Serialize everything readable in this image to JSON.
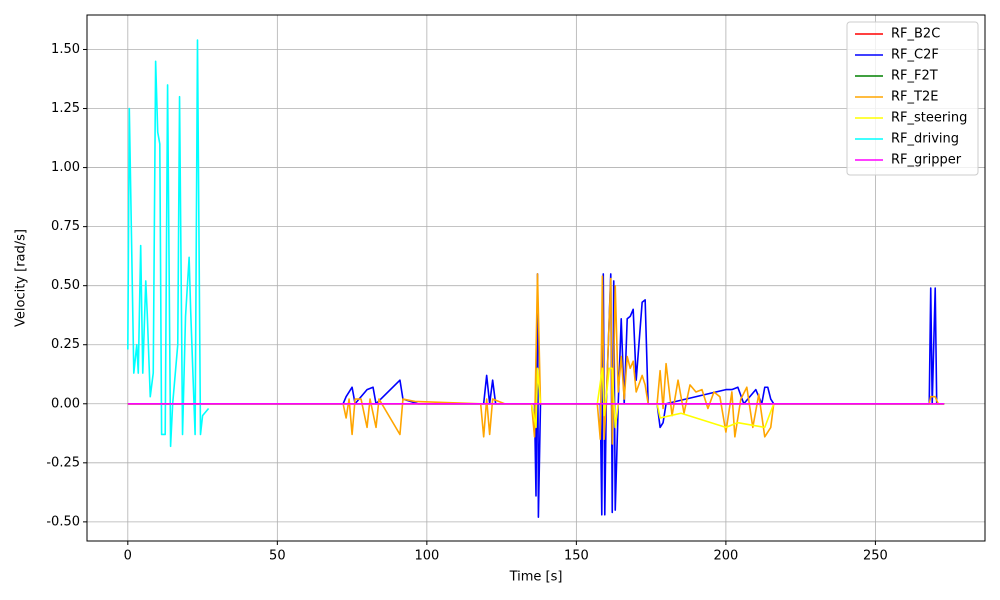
{
  "chart_data": {
    "type": "line",
    "xlabel": "Time [s]",
    "ylabel": "Velocity [rad/s]",
    "xlim": [
      -13.65,
      286.65
    ],
    "ylim": [
      -0.581,
      1.646
    ],
    "xticks": [
      0,
      50,
      100,
      150,
      200,
      250
    ],
    "yticks": [
      {
        "value": -0.5,
        "label": "-0.50"
      },
      {
        "value": -0.25,
        "label": "-0.25"
      },
      {
        "value": 0,
        "label": "0.00"
      },
      {
        "value": 0.25,
        "label": "0.25"
      },
      {
        "value": 0.5,
        "label": "0.50"
      },
      {
        "value": 0.75,
        "label": "0.75"
      },
      {
        "value": 1,
        "label": "1.00"
      },
      {
        "value": 1.25,
        "label": "1.25"
      },
      {
        "value": 1.5,
        "label": "1.50"
      }
    ],
    "grid": true,
    "legend": "upper right",
    "series": [
      {
        "name": "RF_B2C",
        "color": "#ff0000",
        "x": [
          0,
          273
        ],
        "values": [
          0,
          0
        ]
      },
      {
        "name": "RF_C2F",
        "color": "#0000ff",
        "x": [
          0,
          72,
          73,
          75,
          76,
          80,
          82,
          83,
          91,
          92,
          97,
          119,
          120,
          121,
          122,
          123,
          136,
          136.5,
          137,
          137.3,
          138,
          158,
          158.5,
          159,
          159.5,
          160,
          161.5,
          162,
          162.5,
          163,
          164,
          165,
          166,
          167,
          168,
          169,
          170,
          172,
          173,
          174,
          177,
          178,
          179,
          180,
          200,
          202,
          204,
          206,
          210,
          212,
          213,
          214,
          215,
          216,
          268,
          268.5,
          269,
          270,
          270.5,
          273
        ],
        "values": [
          0,
          0,
          0.03,
          0.07,
          0,
          0.06,
          0.07,
          0,
          0.1,
          0.02,
          0,
          0,
          0.12,
          0,
          0.1,
          0,
          0,
          -0.39,
          0.55,
          -0.48,
          0,
          0,
          -0.47,
          0.55,
          -0.47,
          0,
          0.55,
          -0.46,
          0.52,
          -0.45,
          0,
          0.36,
          0,
          0.36,
          0.37,
          0.4,
          0.1,
          0.43,
          0.44,
          0,
          0,
          -0.1,
          -0.08,
          0,
          0.06,
          0.06,
          0.07,
          0,
          0.06,
          0,
          0.07,
          0.07,
          0.02,
          0,
          0,
          0.49,
          0,
          0.49,
          0,
          0
        ]
      },
      {
        "name": "RF_F2T",
        "color": "#008000",
        "x": [
          0,
          273
        ],
        "values": [
          0,
          0
        ]
      },
      {
        "name": "RF_T2E",
        "color": "#ffa500",
        "x": [
          0,
          72,
          73,
          74,
          75,
          76,
          78,
          80,
          81,
          83,
          84,
          91,
          92,
          96,
          118,
          119,
          120,
          121,
          122,
          126,
          135,
          136,
          137,
          138,
          157,
          158,
          158.7,
          159.3,
          160,
          161.5,
          162,
          163,
          164,
          165,
          166,
          167,
          168,
          169,
          170,
          172,
          173,
          174,
          177,
          178,
          179,
          180,
          182,
          184,
          186,
          188,
          190,
          192,
          194,
          196,
          198,
          200,
          202,
          203,
          205,
          207,
          209,
          211,
          213,
          215,
          216,
          268,
          268.5,
          270,
          271,
          273
        ],
        "values": [
          0,
          0,
          -0.06,
          0.02,
          -0.13,
          0.02,
          0.02,
          -0.1,
          0.02,
          -0.1,
          0.02,
          -0.13,
          0.02,
          0.01,
          0,
          -0.14,
          0.02,
          -0.13,
          0.02,
          0,
          0,
          -0.14,
          0.55,
          0,
          0,
          -0.15,
          0.54,
          -0.15,
          0.02,
          0.53,
          -0.17,
          0.5,
          0.05,
          0.2,
          0.02,
          0.2,
          0.15,
          0.18,
          0.05,
          0.12,
          0.08,
          0,
          0,
          0.14,
          -0.02,
          0.17,
          -0.05,
          0.1,
          -0.04,
          0.08,
          0.05,
          0.06,
          -0.02,
          0.05,
          0.03,
          -0.12,
          0.05,
          -0.14,
          0.02,
          0.07,
          -0.1,
          0.04,
          -0.14,
          -0.1,
          0,
          0,
          0.03,
          0.03,
          0,
          0
        ]
      },
      {
        "name": "RF_steering",
        "color": "#ffff00",
        "x": [
          0,
          135,
          136.5,
          137,
          138,
          157,
          158.7,
          159.3,
          161,
          162,
          163,
          164,
          177,
          178,
          185,
          200,
          204,
          213,
          216,
          273
        ],
        "values": [
          0,
          0,
          -0.1,
          0.15,
          0,
          0,
          0.15,
          -0.05,
          0.15,
          0.15,
          -0.1,
          0,
          0,
          -0.06,
          -0.04,
          -0.1,
          -0.08,
          -0.1,
          0,
          0
        ]
      },
      {
        "name": "RF_driving",
        "color": "#00ffff",
        "x": [
          0,
          0.5,
          2,
          3,
          3.5,
          4.3,
          5,
          6,
          6.5,
          7.5,
          8.5,
          9.3,
          10,
          10.7,
          11.3,
          12.5,
          13.3,
          14.3,
          15,
          16.7,
          17.3,
          18.3,
          19.3,
          20.5,
          21,
          22.5,
          23.3,
          24.3,
          25,
          27
        ],
        "values": [
          0.23,
          1.25,
          0.13,
          0.25,
          0.13,
          0.67,
          0.13,
          0.52,
          0.38,
          0.03,
          0.13,
          1.45,
          1.15,
          1.1,
          -0.13,
          -0.13,
          1.35,
          -0.18,
          0,
          0.25,
          1.3,
          -0.13,
          0.37,
          0.62,
          0.4,
          -0.13,
          1.54,
          -0.13,
          -0.05,
          -0.02
        ]
      },
      {
        "name": "RF_gripper",
        "color": "#ff00ff",
        "x": [
          0,
          273
        ],
        "values": [
          0,
          0
        ]
      }
    ]
  }
}
